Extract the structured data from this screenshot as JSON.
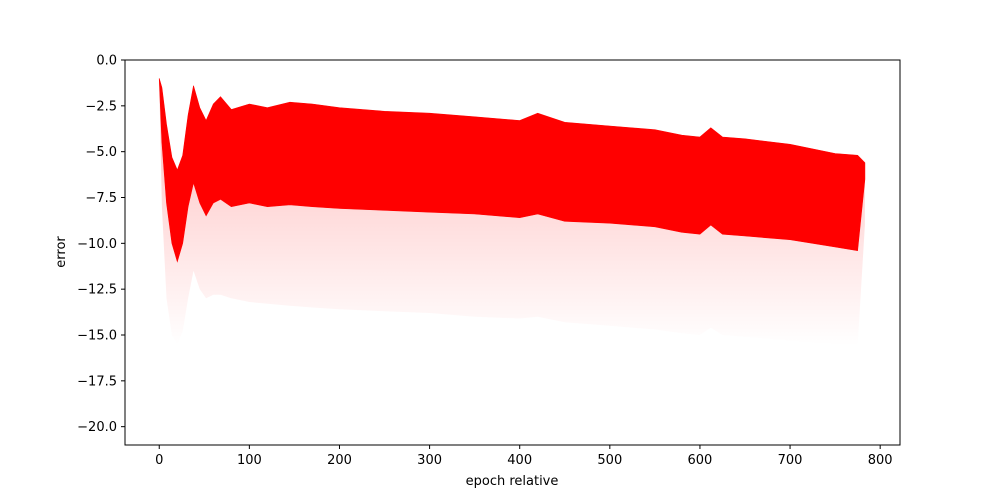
{
  "chart_data": {
    "type": "area",
    "xlabel": "epoch relative",
    "ylabel": "error",
    "xlim": [
      -38,
      822
    ],
    "ylim": [
      -21.0,
      0.0
    ],
    "grid": false,
    "x_ticks": [
      0,
      100,
      200,
      300,
      400,
      500,
      600,
      700,
      800
    ],
    "y_ticks": [
      0.0,
      -2.5,
      -5.0,
      -7.5,
      -10.0,
      -12.5,
      -15.0,
      -17.5,
      -20.0
    ],
    "x_tick_labels": [
      "0",
      "100",
      "200",
      "300",
      "400",
      "500",
      "600",
      "700",
      "800"
    ],
    "y_tick_labels": [
      "0.0",
      "−2.5",
      "−5.0",
      "−7.5",
      "−10.0",
      "−12.5",
      "−15.0",
      "−17.5",
      "−20.0"
    ],
    "color": "#ff0000",
    "series": [
      {
        "x": [
          0,
          3,
          8,
          14,
          20,
          26,
          32,
          38,
          45,
          52,
          60,
          68,
          80,
          100,
          120,
          145,
          170,
          200,
          250,
          300,
          350,
          400,
          420,
          450,
          500,
          550,
          580,
          600,
          612,
          625,
          650,
          700,
          750,
          775,
          783
        ],
        "upper": [
          -1.0,
          -1.5,
          -3.5,
          -5.3,
          -6.0,
          -5.2,
          -3.0,
          -1.4,
          -2.6,
          -3.3,
          -2.4,
          -2.0,
          -2.7,
          -2.4,
          -2.6,
          -2.3,
          -2.4,
          -2.6,
          -2.8,
          -2.9,
          -3.1,
          -3.3,
          -2.9,
          -3.4,
          -3.6,
          -3.8,
          -4.1,
          -4.2,
          -3.7,
          -4.2,
          -4.3,
          -4.6,
          -5.1,
          -5.2,
          -5.6
        ],
        "lower": [
          -1.0,
          -4.5,
          -7.8,
          -10.0,
          -11.0,
          -10.0,
          -8.0,
          -6.7,
          -7.8,
          -8.5,
          -7.8,
          -7.6,
          -8.0,
          -7.8,
          -8.0,
          -7.9,
          -8.0,
          -8.1,
          -8.2,
          -8.3,
          -8.4,
          -8.6,
          -8.4,
          -8.8,
          -8.9,
          -9.1,
          -9.4,
          -9.5,
          -9.0,
          -9.5,
          -9.6,
          -9.8,
          -10.2,
          -10.4,
          -6.5
        ],
        "faint_lower": [
          -1.0,
          -8.0,
          -13.0,
          -15.0,
          -15.5,
          -14.8,
          -13.0,
          -11.5,
          -12.5,
          -13.0,
          -12.8,
          -12.8,
          -13.0,
          -13.2,
          -13.3,
          -13.4,
          -13.5,
          -13.6,
          -13.7,
          -13.8,
          -14.0,
          -14.1,
          -14.0,
          -14.3,
          -14.5,
          -14.7,
          -14.9,
          -15.0,
          -14.6,
          -15.0,
          -15.1,
          -15.3,
          -15.5,
          -15.6,
          -9.0
        ]
      }
    ]
  }
}
